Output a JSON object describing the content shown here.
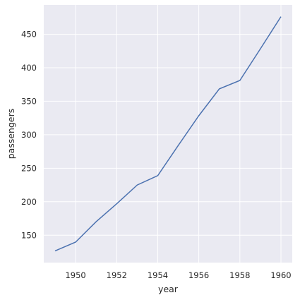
{
  "chart_data": {
    "type": "line",
    "xlabel": "year",
    "ylabel": "passengers",
    "x": [
      1949,
      1950,
      1951,
      1952,
      1953,
      1954,
      1955,
      1956,
      1957,
      1958,
      1959,
      1960
    ],
    "series": [
      {
        "values": [
          126.7,
          139.7,
          170.2,
          197.0,
          225.0,
          239.0,
          284.0,
          328.3,
          368.4,
          381.0,
          428.3,
          476.2
        ]
      }
    ],
    "xlim": [
      1948.45,
      1960.55
    ],
    "ylim": [
      109.2,
      493.7
    ],
    "xticks": [
      1950,
      1952,
      1954,
      1956,
      1958,
      1960
    ],
    "yticks": [
      150,
      200,
      250,
      300,
      350,
      400,
      450
    ],
    "grid": true,
    "colors": {
      "background": "#eaeaf2",
      "grid": "#ffffff",
      "line": "#4c72b0"
    }
  }
}
